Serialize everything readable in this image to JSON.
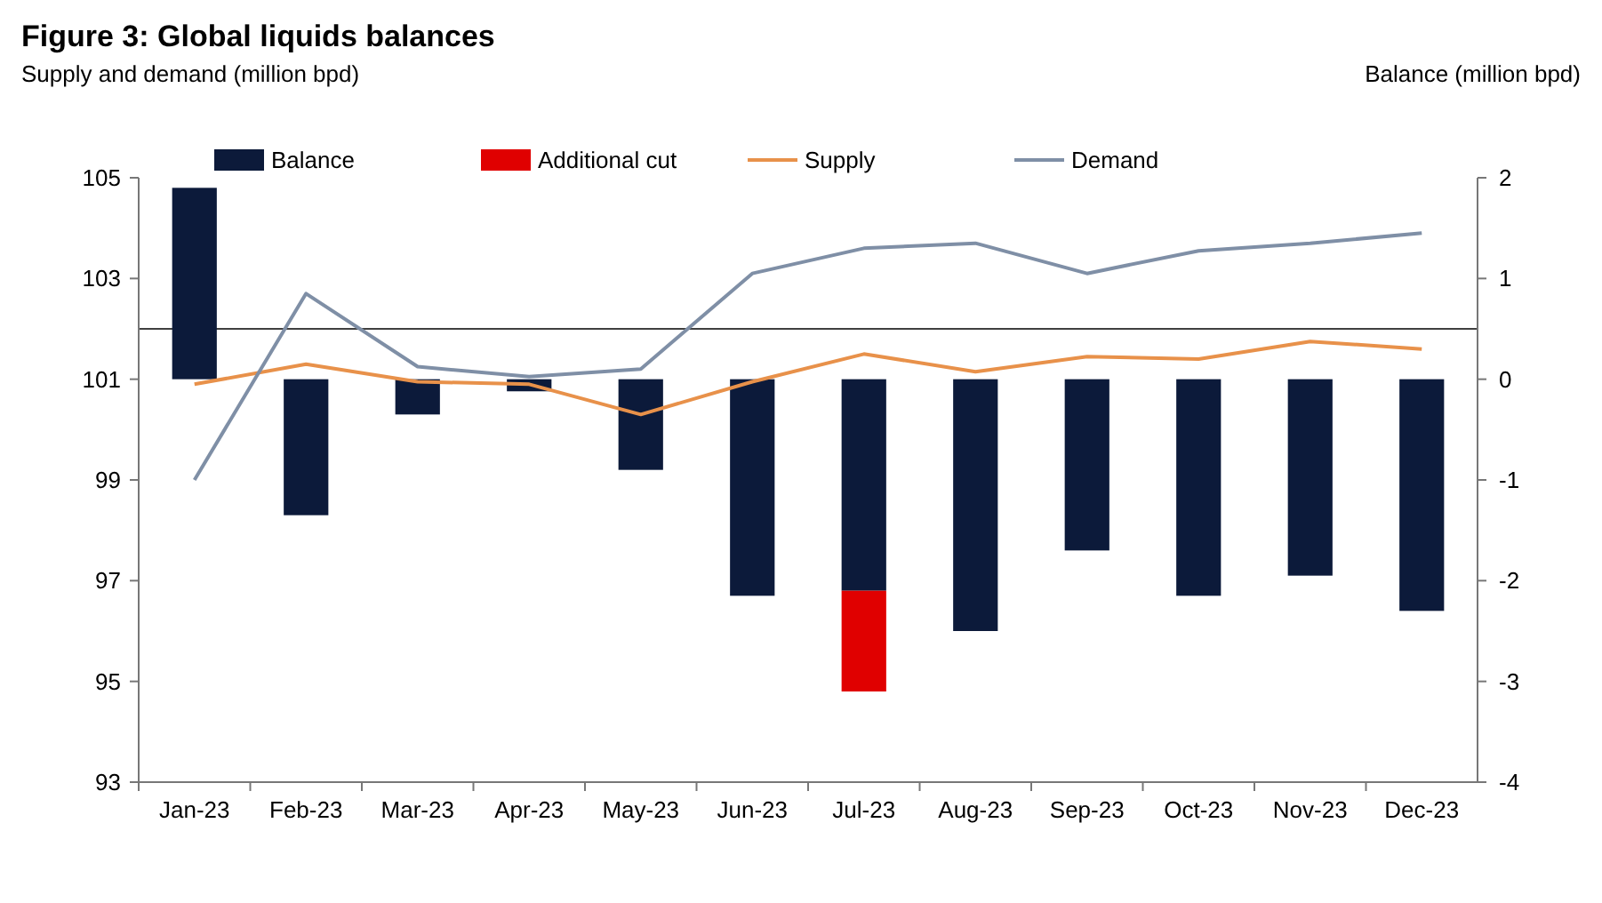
{
  "chart_data": {
    "type": "bar",
    "title": "Figure 3: Global liquids balances",
    "ylabel": "Supply and demand (million bpd)",
    "y2label": "Balance (million bpd)",
    "categories": [
      "Jan-23",
      "Feb-23",
      "Mar-23",
      "Apr-23",
      "May-23",
      "Jun-23",
      "Jul-23",
      "Aug-23",
      "Sep-23",
      "Oct-23",
      "Nov-23",
      "Dec-23"
    ],
    "stacked": true,
    "legend": "top",
    "grid": false,
    "ylim": [
      93,
      105
    ],
    "yticks": [
      93,
      95,
      97,
      99,
      101,
      103,
      105
    ],
    "y2lim": [
      -4,
      2
    ],
    "y2ticks": [
      -4,
      -3,
      -2,
      -1,
      0,
      1,
      2
    ],
    "ref_lines": [
      {
        "axis": "y",
        "value": 102,
        "color": "#404040"
      }
    ],
    "series": [
      {
        "name": "Balance",
        "axis": "y2",
        "color": "#0c1a3a",
        "values": [
          1.9,
          -1.35,
          -0.35,
          -0.12,
          -0.9,
          -2.15,
          -2.1,
          -2.5,
          -1.7,
          -2.15,
          -1.95,
          -2.3
        ]
      },
      {
        "name": "Additional cut",
        "axis": "y2",
        "color": "#e00000",
        "values": [
          null,
          null,
          null,
          null,
          null,
          null,
          -1.0,
          null,
          null,
          null,
          null,
          null
        ]
      },
      {
        "name": "Supply",
        "type": "line",
        "axis": "y",
        "color": "#e8914a",
        "values": [
          100.9,
          101.3,
          100.95,
          100.9,
          100.3,
          100.95,
          101.5,
          101.15,
          101.45,
          101.4,
          101.75,
          101.6
        ]
      },
      {
        "name": "Demand",
        "type": "line",
        "axis": "y",
        "color": "#7f8fa6",
        "values": [
          99.0,
          102.7,
          101.25,
          101.05,
          101.2,
          103.1,
          103.6,
          103.7,
          103.1,
          103.55,
          103.7,
          103.9
        ]
      }
    ]
  }
}
